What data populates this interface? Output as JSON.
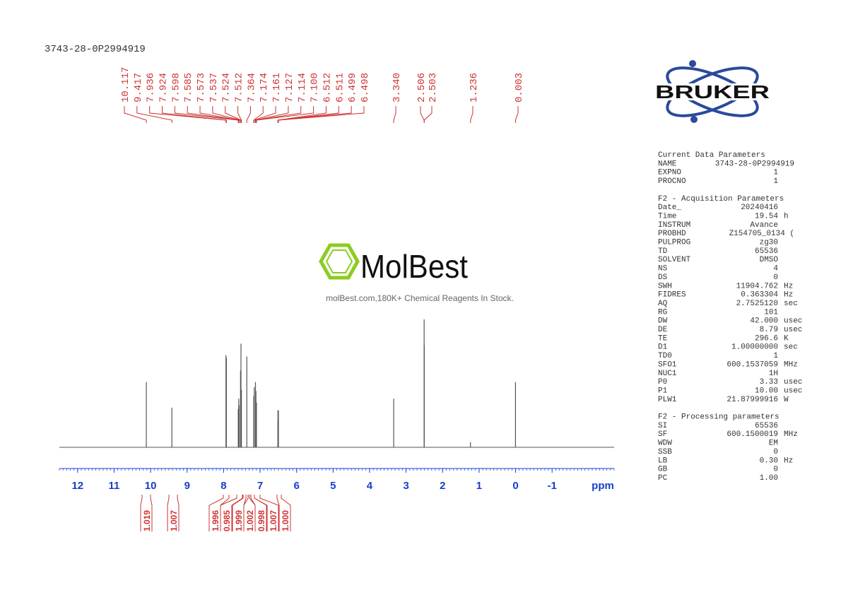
{
  "chart_data": {
    "type": "nmr",
    "title": "3743-28-0P2994919",
    "xlabel": "ppm",
    "xlim": [
      12.5,
      -2.7
    ],
    "xticks": [
      12,
      11,
      10,
      9,
      8,
      7,
      6,
      5,
      4,
      3,
      2,
      1,
      0,
      -1
    ],
    "x": [
      10.117,
      9.417,
      7.936,
      7.924,
      7.598,
      7.585,
      7.573,
      7.537,
      7.524,
      7.512,
      7.364,
      7.174,
      7.161,
      7.127,
      7.114,
      7.1,
      6.512,
      6.511,
      6.499,
      6.498,
      3.34,
      2.506,
      2.503,
      1.236,
      0.003
    ],
    "peak_labels": [
      "10.117",
      "9.417",
      "7.936",
      "7.924",
      "7.598",
      "7.585",
      "7.573",
      "7.537",
      "7.524",
      "7.512",
      "7.364",
      "7.174",
      "7.161",
      "7.127",
      "7.114",
      "7.100",
      "6.512",
      "6.511",
      "6.499",
      "6.498",
      "3.340",
      "2.506",
      "2.503",
      "1.236",
      "0.003"
    ],
    "values": [
      51,
      31,
      72,
      70,
      30,
      38,
      33,
      60,
      81,
      45,
      71,
      40,
      47,
      51,
      44,
      35,
      22,
      29,
      29,
      22,
      38,
      100,
      80,
      4,
      51
    ],
    "color": "#555555",
    "label_color": "#cc3333",
    "axis_color": "#1a3ccc",
    "integrals": {
      "values": [
        1.019,
        1.007,
        1.996,
        0.985,
        1.999,
        1.002,
        0.998,
        1.007,
        1.0
      ],
      "value_labels": [
        "1.019",
        "1.007",
        "1.996",
        "0.985",
        "1.999",
        "1.002",
        "0.998",
        "1.007",
        "1.000"
      ]
    }
  },
  "logos": {
    "bruker": "BRUKER",
    "molbest": "MolBest",
    "molbest_tagline": "molBest.com,180K+ Chemical Reagents In Stock."
  },
  "parameters": [
    {
      "title": "Current Data Parameters",
      "rows": [
        [
          "NAME",
          "3743-28-0P2994919"
        ],
        [
          "EXPNO",
          "1"
        ],
        [
          "PROCNO",
          "1"
        ]
      ]
    },
    {
      "title": "F2 - Acquisition Parameters",
      "rows": [
        [
          "Date_",
          "20240416"
        ],
        [
          "Time",
          "19.54",
          "h"
        ],
        [
          "INSTRUM",
          "Avance"
        ],
        [
          "PROBHD",
          "Z154705_0134 ("
        ],
        [
          "PULPROG",
          "zg30"
        ],
        [
          "TD",
          "65536"
        ],
        [
          "SOLVENT",
          "DMSO"
        ],
        [
          "NS",
          "4"
        ],
        [
          "DS",
          "0"
        ],
        [
          "SWH",
          "11904.762",
          "Hz"
        ],
        [
          "FIDRES",
          "0.363304",
          "Hz"
        ],
        [
          "AQ",
          "2.7525120",
          "sec"
        ],
        [
          "RG",
          "101"
        ],
        [
          "DW",
          "42.000",
          "usec"
        ],
        [
          "DE",
          "8.79",
          "usec"
        ],
        [
          "TE",
          "296.6",
          "K"
        ],
        [
          "D1",
          "1.00000000",
          "sec"
        ],
        [
          "TD0",
          "1"
        ],
        [
          "SFO1",
          "600.1537059",
          "MHz"
        ],
        [
          "NUC1",
          "1H"
        ],
        [
          "P0",
          "3.33",
          "usec"
        ],
        [
          "P1",
          "10.00",
          "usec"
        ],
        [
          "PLW1",
          "21.87999916",
          "W"
        ]
      ]
    },
    {
      "title": "F2 - Processing parameters",
      "rows": [
        [
          "SI",
          "65536"
        ],
        [
          "SF",
          "600.1500019",
          "MHz"
        ],
        [
          "WDW",
          "EM"
        ],
        [
          "SSB",
          "0"
        ],
        [
          "LB",
          "0.30",
          "Hz"
        ],
        [
          "GB",
          "0"
        ],
        [
          "PC",
          "1.00"
        ]
      ]
    }
  ]
}
